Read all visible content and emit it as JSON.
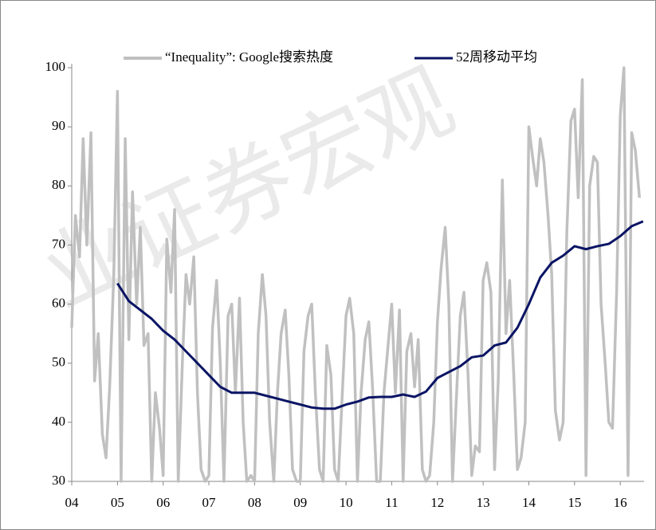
{
  "chart_data": {
    "type": "line",
    "watermark": "业证券宏观",
    "xlim": [
      2004,
      2016.52
    ],
    "xticks": [
      {
        "value": 2004,
        "label": "04"
      },
      {
        "value": 2005,
        "label": "05"
      },
      {
        "value": 2006,
        "label": "06"
      },
      {
        "value": 2007,
        "label": "07"
      },
      {
        "value": 2008,
        "label": "08"
      },
      {
        "value": 2009,
        "label": "09"
      },
      {
        "value": 2010,
        "label": "10"
      },
      {
        "value": 2011,
        "label": "11"
      },
      {
        "value": 2012,
        "label": "12"
      },
      {
        "value": 2013,
        "label": "13"
      },
      {
        "value": 2014,
        "label": "14"
      },
      {
        "value": 2015,
        "label": "15"
      },
      {
        "value": 2016,
        "label": "16"
      }
    ],
    "ylim": [
      30,
      100
    ],
    "yticks": [
      30,
      40,
      50,
      60,
      70,
      80,
      90,
      100
    ],
    "grid": false,
    "legend": "top",
    "series": [
      {
        "name": "“Inequality”: Google搜索热度",
        "color": "#c0c0c0",
        "x": [
          2004.0,
          2004.08,
          2004.17,
          2004.25,
          2004.33,
          2004.42,
          2004.5,
          2004.58,
          2004.67,
          2004.75,
          2004.83,
          2004.92,
          2005.0,
          2005.08,
          2005.17,
          2005.25,
          2005.33,
          2005.42,
          2005.5,
          2005.58,
          2005.67,
          2005.75,
          2005.83,
          2005.92,
          2006.0,
          2006.08,
          2006.17,
          2006.25,
          2006.33,
          2006.42,
          2006.5,
          2006.58,
          2006.67,
          2006.75,
          2006.83,
          2006.92,
          2007.0,
          2007.08,
          2007.17,
          2007.25,
          2007.33,
          2007.42,
          2007.5,
          2007.58,
          2007.67,
          2007.75,
          2007.83,
          2007.92,
          2008.0,
          2008.08,
          2008.17,
          2008.25,
          2008.33,
          2008.42,
          2008.5,
          2008.58,
          2008.67,
          2008.75,
          2008.83,
          2008.92,
          2009.0,
          2009.08,
          2009.17,
          2009.25,
          2009.33,
          2009.42,
          2009.5,
          2009.58,
          2009.67,
          2009.75,
          2009.83,
          2009.92,
          2010.0,
          2010.08,
          2010.17,
          2010.25,
          2010.33,
          2010.42,
          2010.5,
          2010.58,
          2010.67,
          2010.75,
          2010.83,
          2010.92,
          2011.0,
          2011.08,
          2011.17,
          2011.25,
          2011.33,
          2011.42,
          2011.5,
          2011.58,
          2011.67,
          2011.75,
          2011.83,
          2011.92,
          2012.0,
          2012.08,
          2012.17,
          2012.25,
          2012.33,
          2012.42,
          2012.5,
          2012.58,
          2012.67,
          2012.75,
          2012.83,
          2012.92,
          2013.0,
          2013.08,
          2013.17,
          2013.25,
          2013.33,
          2013.42,
          2013.5,
          2013.58,
          2013.67,
          2013.75,
          2013.83,
          2013.92,
          2014.0,
          2014.08,
          2014.17,
          2014.25,
          2014.33,
          2014.42,
          2014.5,
          2014.58,
          2014.67,
          2014.75,
          2014.83,
          2014.92,
          2015.0,
          2015.08,
          2015.17,
          2015.25,
          2015.33,
          2015.42,
          2015.5,
          2015.58,
          2015.67,
          2015.75,
          2015.83,
          2015.92,
          2016.0,
          2016.08,
          2016.17,
          2016.25,
          2016.33,
          2016.42
        ],
        "values": [
          56,
          75,
          68,
          88,
          70,
          89,
          47,
          55,
          38,
          34,
          46,
          65,
          96,
          30,
          88,
          54,
          79,
          60,
          73,
          53,
          55,
          30,
          45,
          39,
          31,
          71,
          62,
          76,
          30,
          50,
          65,
          60,
          68,
          45,
          32,
          30,
          31,
          56,
          64,
          50,
          30,
          58,
          60,
          45,
          61,
          40,
          30,
          31,
          30,
          55,
          65,
          58,
          40,
          30,
          45,
          55,
          59,
          48,
          32,
          30,
          30,
          52,
          58,
          60,
          45,
          32,
          30,
          53,
          48,
          32,
          30,
          45,
          58,
          61,
          55,
          30,
          45,
          54,
          57,
          46,
          30,
          30,
          45,
          53,
          60,
          45,
          59,
          30,
          52,
          55,
          46,
          54,
          32,
          30,
          31,
          40,
          57,
          66,
          73,
          60,
          30,
          45,
          58,
          62,
          48,
          31,
          36,
          35,
          64,
          67,
          62,
          32,
          47,
          81,
          55,
          64,
          48,
          32,
          34,
          40,
          90,
          85,
          80,
          88,
          84,
          75,
          65,
          42,
          37,
          40,
          72,
          91,
          93,
          78,
          98,
          31,
          80,
          85,
          84,
          60,
          50,
          40,
          39,
          62,
          92,
          100,
          31,
          89,
          86,
          78
        ]
      },
      {
        "name": "52周移动平均",
        "color": "#0a1464",
        "x": [
          2005.0,
          2005.25,
          2005.5,
          2005.75,
          2006.0,
          2006.25,
          2006.5,
          2006.75,
          2007.0,
          2007.25,
          2007.5,
          2007.75,
          2008.0,
          2008.25,
          2008.5,
          2008.75,
          2009.0,
          2009.25,
          2009.5,
          2009.75,
          2010.0,
          2010.25,
          2010.5,
          2010.75,
          2011.0,
          2011.25,
          2011.5,
          2011.75,
          2012.0,
          2012.25,
          2012.5,
          2012.75,
          2013.0,
          2013.25,
          2013.5,
          2013.75,
          2014.0,
          2014.25,
          2014.5,
          2014.75,
          2015.0,
          2015.25,
          2015.5,
          2015.75,
          2016.0,
          2016.25,
          2016.5
        ],
        "values": [
          63.5,
          60.5,
          59,
          57.5,
          55.5,
          54,
          52,
          50,
          48,
          46,
          45,
          45,
          45,
          44.5,
          44,
          43.5,
          43,
          42.5,
          42.3,
          42.3,
          43,
          43.5,
          44.2,
          44.3,
          44.3,
          44.7,
          44.3,
          45.2,
          47.5,
          48.5,
          49.5,
          51,
          51.3,
          53,
          53.5,
          56,
          60,
          64.5,
          67,
          68.2,
          69.8,
          69.3,
          69.8,
          70.2,
          71.5,
          73.2,
          74
        ]
      }
    ]
  }
}
